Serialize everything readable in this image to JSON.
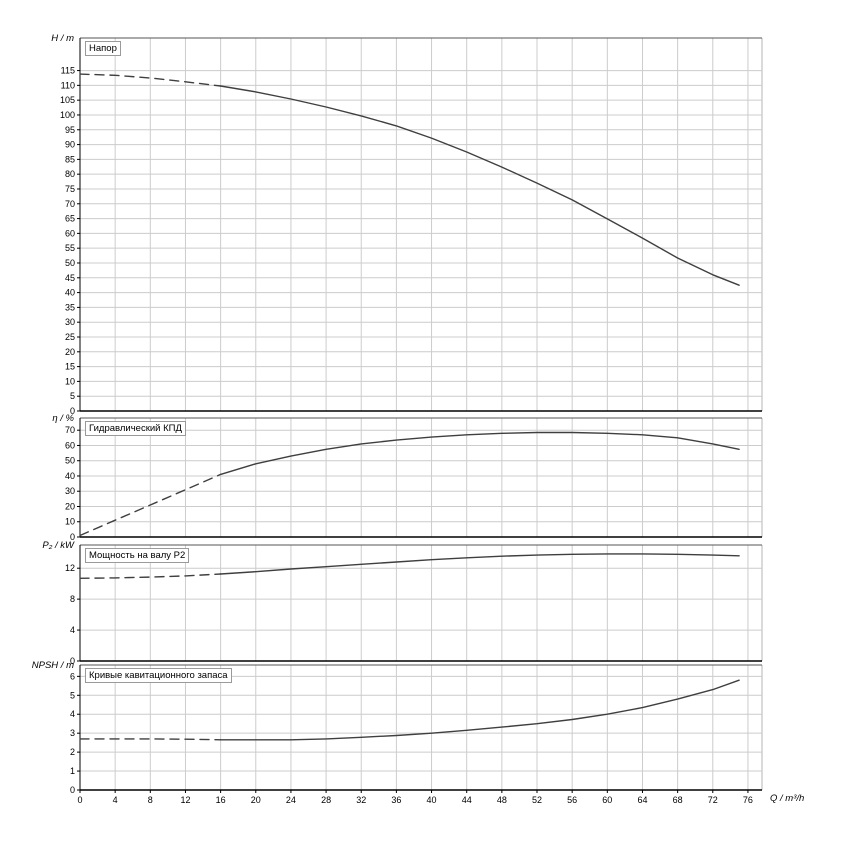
{
  "colors": {
    "curve": "#3f3f3f",
    "grid": "#cccccc",
    "axis": "#000000",
    "border": "#555555",
    "right_border": "#b5b5b5"
  },
  "chart_data": {
    "type": "line",
    "x_axis": {
      "label": "Q / m³/h",
      "xlim": [
        0,
        77.6
      ],
      "ticks": [
        0,
        4,
        8,
        12,
        16,
        20,
        24,
        28,
        32,
        36,
        40,
        44,
        48,
        52,
        56,
        60,
        64,
        68,
        72,
        76
      ]
    },
    "panels": [
      {
        "id": "head",
        "title": "Напор",
        "ylabel": "H / m",
        "ylim": [
          0,
          126
        ],
        "yticks": [
          0,
          5,
          10,
          15,
          20,
          25,
          30,
          35,
          40,
          45,
          50,
          55,
          60,
          65,
          70,
          75,
          80,
          85,
          90,
          95,
          100,
          105,
          110,
          115
        ],
        "series": [
          {
            "name": "head-curve-dashed",
            "style": "dashed",
            "x": [
              0,
              4,
              8,
              12,
              16
            ],
            "y": [
              113.8,
              113.4,
              112.5,
              111.2,
              109.8
            ]
          },
          {
            "name": "head-curve-solid",
            "style": "solid",
            "x": [
              16,
              20,
              24,
              28,
              32,
              36,
              40,
              44,
              48,
              52,
              56,
              60,
              64,
              68,
              72,
              75
            ],
            "y": [
              109.8,
              107.8,
              105.4,
              102.7,
              99.7,
              96.3,
              92.2,
              87.5,
              82.4,
              77.0,
              71.3,
              64.9,
              58.4,
              51.7,
              46.0,
              42.5
            ]
          }
        ]
      },
      {
        "id": "efficiency",
        "title": "Гидравлический КПД",
        "ylabel": "η / %",
        "ylim": [
          0,
          78
        ],
        "yticks": [
          0,
          10,
          20,
          30,
          40,
          50,
          60,
          70
        ],
        "series": [
          {
            "name": "efficiency-curve-dashed",
            "style": "dashed",
            "x": [
              0,
              4,
              8,
              12,
              16
            ],
            "y": [
              1,
              11,
              21,
              31,
              41
            ]
          },
          {
            "name": "efficiency-curve-solid",
            "style": "solid",
            "x": [
              16,
              20,
              24,
              28,
              32,
              36,
              40,
              44,
              48,
              52,
              56,
              60,
              64,
              68,
              72,
              75
            ],
            "y": [
              41,
              48,
              53,
              57.5,
              61,
              63.5,
              65.5,
              67,
              68,
              68.5,
              68.5,
              68,
              67,
              65,
              61,
              57.5
            ]
          }
        ]
      },
      {
        "id": "power",
        "title": "Мощность на валу P2",
        "ylabel": "P₂ / kW",
        "ylim": [
          0,
          15
        ],
        "yticks": [
          0,
          4,
          8,
          12
        ],
        "series": [
          {
            "name": "power-curve-dashed",
            "style": "dashed",
            "x": [
              0,
              4,
              8,
              12,
              16
            ],
            "y": [
              10.7,
              10.75,
              10.85,
              11.0,
              11.25
            ]
          },
          {
            "name": "power-curve-solid",
            "style": "solid",
            "x": [
              16,
              20,
              24,
              28,
              32,
              36,
              40,
              44,
              48,
              52,
              56,
              60,
              64,
              68,
              72,
              75
            ],
            "y": [
              11.25,
              11.55,
              11.9,
              12.2,
              12.5,
              12.8,
              13.1,
              13.35,
              13.55,
              13.7,
              13.8,
              13.85,
              13.85,
              13.8,
              13.7,
              13.6
            ]
          }
        ]
      },
      {
        "id": "npsh",
        "title": "Кривые кавитационного запаса",
        "ylabel": "NPSH / m",
        "ylim": [
          0,
          6.6
        ],
        "yticks": [
          0,
          1,
          2,
          3,
          4,
          5,
          6
        ],
        "series": [
          {
            "name": "npsh-curve-dashed",
            "style": "dashed",
            "x": [
              0,
              4,
              8,
              12,
              16
            ],
            "y": [
              2.7,
              2.7,
              2.7,
              2.68,
              2.65
            ]
          },
          {
            "name": "npsh-curve-solid",
            "style": "solid",
            "x": [
              16,
              20,
              24,
              28,
              32,
              36,
              40,
              44,
              48,
              52,
              56,
              60,
              64,
              68,
              72,
              75
            ],
            "y": [
              2.65,
              2.65,
              2.65,
              2.7,
              2.78,
              2.88,
              3.0,
              3.15,
              3.32,
              3.5,
              3.72,
              4.0,
              4.35,
              4.8,
              5.3,
              5.8
            ]
          }
        ]
      }
    ]
  }
}
